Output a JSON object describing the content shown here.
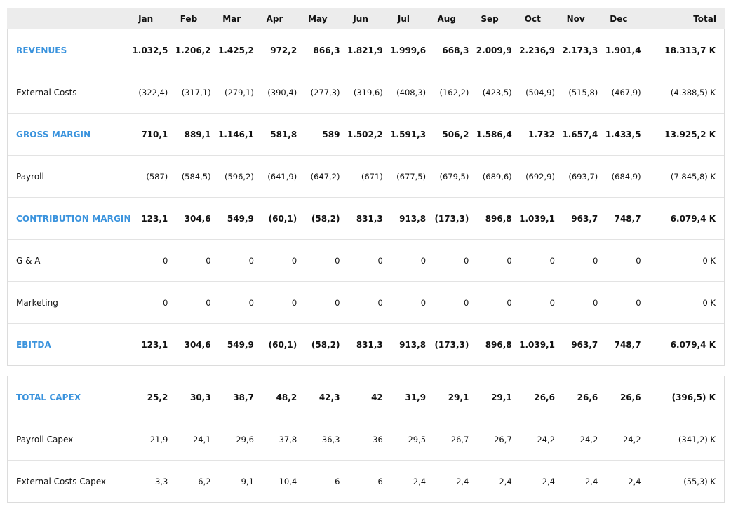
{
  "months": [
    "Jan",
    "Feb",
    "Mar",
    "Apr",
    "May",
    "Jun",
    "Jul",
    "Aug",
    "Sep",
    "Oct",
    "Nov",
    "Dec"
  ],
  "total_header": "Total",
  "rows_main": [
    {
      "label": "REVENUES",
      "type": "highlight",
      "values": [
        "1.032,5",
        "1.206,2",
        "1.425,2",
        "972,2",
        "866,3",
        "1.821,9",
        "1.999,6",
        "668,3",
        "2.009,9",
        "2.236,9",
        "2.173,3",
        "1.901,4"
      ],
      "total": "18.313,7 K"
    },
    {
      "label": "External Costs",
      "type": "normal",
      "values": [
        "(322,4)",
        "(317,1)",
        "(279,1)",
        "(390,4)",
        "(277,3)",
        "(319,6)",
        "(408,3)",
        "(162,2)",
        "(423,5)",
        "(504,9)",
        "(515,8)",
        "(467,9)"
      ],
      "total": "(4.388,5) K"
    },
    {
      "label": "GROSS MARGIN",
      "type": "highlight",
      "values": [
        "710,1",
        "889,1",
        "1.146,1",
        "581,8",
        "589",
        "1.502,2",
        "1.591,3",
        "506,2",
        "1.586,4",
        "1.732",
        "1.657,4",
        "1.433,5"
      ],
      "total": "13.925,2 K"
    },
    {
      "label": "Payroll",
      "type": "normal",
      "values": [
        "(587)",
        "(584,5)",
        "(596,2)",
        "(641,9)",
        "(647,2)",
        "(671)",
        "(677,5)",
        "(679,5)",
        "(689,6)",
        "(692,9)",
        "(693,7)",
        "(684,9)"
      ],
      "total": "(7.845,8) K"
    },
    {
      "label": "CONTRIBUTION MARGIN",
      "type": "highlight",
      "values": [
        "123,1",
        "304,6",
        "549,9",
        "(60,1)",
        "(58,2)",
        "831,3",
        "913,8",
        "(173,3)",
        "896,8",
        "1.039,1",
        "963,7",
        "748,7"
      ],
      "total": "6.079,4 K"
    },
    {
      "label": "G & A",
      "type": "normal",
      "values": [
        "0",
        "0",
        "0",
        "0",
        "0",
        "0",
        "0",
        "0",
        "0",
        "0",
        "0",
        "0"
      ],
      "total": "0 K"
    },
    {
      "label": "Marketing",
      "type": "normal",
      "values": [
        "0",
        "0",
        "0",
        "0",
        "0",
        "0",
        "0",
        "0",
        "0",
        "0",
        "0",
        "0"
      ],
      "total": "0 K"
    },
    {
      "label": "EBITDA",
      "type": "highlight",
      "values": [
        "123,1",
        "304,6",
        "549,9",
        "(60,1)",
        "(58,2)",
        "831,3",
        "913,8",
        "(173,3)",
        "896,8",
        "1.039,1",
        "963,7",
        "748,7"
      ],
      "total": "6.079,4 K"
    }
  ],
  "rows_capex": [
    {
      "label": "TOTAL CAPEX",
      "type": "highlight",
      "values": [
        "25,2",
        "30,3",
        "38,7",
        "48,2",
        "42,3",
        "42",
        "31,9",
        "29,1",
        "29,1",
        "26,6",
        "26,6",
        "26,6"
      ],
      "total": "(396,5) K"
    },
    {
      "label": "Payroll Capex",
      "type": "normal",
      "values": [
        "21,9",
        "24,1",
        "29,6",
        "37,8",
        "36,3",
        "36",
        "29,5",
        "26,7",
        "26,7",
        "24,2",
        "24,2",
        "24,2"
      ],
      "total": "(341,2) K"
    },
    {
      "label": "External Costs Capex",
      "type": "normal",
      "values": [
        "3,3",
        "6,2",
        "9,1",
        "10,4",
        "6",
        "6",
        "2,4",
        "2,4",
        "2,4",
        "2,4",
        "2,4",
        "2,4"
      ],
      "total": "(55,3) K"
    }
  ],
  "colors": {
    "accent": "#3a93dd",
    "header_bg": "#ececec"
  }
}
